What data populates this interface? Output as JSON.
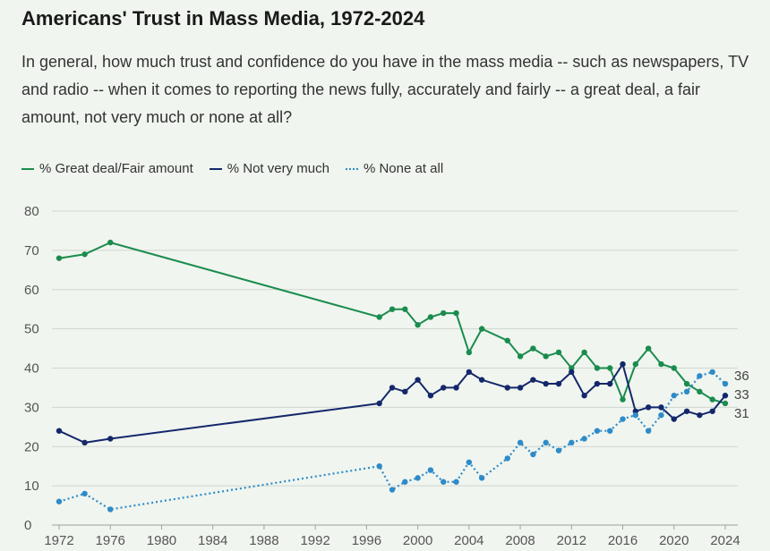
{
  "chart_data": {
    "type": "line",
    "title": "Americans' Trust in Mass Media, 1972-2024",
    "subtitle": "In general, how much trust and confidence do you have in the mass media -- such as newspapers, TV and radio -- when it comes to reporting the news fully, accurately and fairly -- a great deal, a fair amount, not very much or none at all?",
    "xlabel": "",
    "ylabel": "",
    "xlim": [
      1972,
      2024
    ],
    "ylim": [
      0,
      80
    ],
    "x_ticks": [
      1972,
      1976,
      1980,
      1984,
      1988,
      1992,
      1996,
      2000,
      2004,
      2008,
      2012,
      2016,
      2020,
      2024
    ],
    "y_ticks": [
      0,
      10,
      20,
      30,
      40,
      50,
      60,
      70,
      80
    ],
    "grid": true,
    "legend_position": "top-left",
    "series": [
      {
        "name": "% Great deal/Fair amount",
        "color": "#1a8c4e",
        "style": "solid",
        "end_label": "31",
        "points": [
          [
            1972,
            68
          ],
          [
            1974,
            69
          ],
          [
            1976,
            72
          ],
          [
            1997,
            53
          ],
          [
            1998,
            55
          ],
          [
            1999,
            55
          ],
          [
            2000,
            51
          ],
          [
            2001,
            53
          ],
          [
            2002,
            54
          ],
          [
            2003,
            54
          ],
          [
            2004,
            44
          ],
          [
            2005,
            50
          ],
          [
            2007,
            47
          ],
          [
            2008,
            43
          ],
          [
            2009,
            45
          ],
          [
            2010,
            43
          ],
          [
            2011,
            44
          ],
          [
            2012,
            40
          ],
          [
            2013,
            44
          ],
          [
            2014,
            40
          ],
          [
            2015,
            40
          ],
          [
            2016,
            32
          ],
          [
            2017,
            41
          ],
          [
            2018,
            45
          ],
          [
            2019,
            41
          ],
          [
            2020,
            40
          ],
          [
            2021,
            36
          ],
          [
            2022,
            34
          ],
          [
            2023,
            32
          ],
          [
            2024,
            31
          ]
        ]
      },
      {
        "name": "% Not very much",
        "color": "#14276b",
        "style": "solid",
        "end_label": "33",
        "points": [
          [
            1972,
            24
          ],
          [
            1974,
            21
          ],
          [
            1976,
            22
          ],
          [
            1997,
            31
          ],
          [
            1998,
            35
          ],
          [
            1999,
            34
          ],
          [
            2000,
            37
          ],
          [
            2001,
            33
          ],
          [
            2002,
            35
          ],
          [
            2003,
            35
          ],
          [
            2004,
            39
          ],
          [
            2005,
            37
          ],
          [
            2007,
            35
          ],
          [
            2008,
            35
          ],
          [
            2009,
            37
          ],
          [
            2010,
            36
          ],
          [
            2011,
            36
          ],
          [
            2012,
            39
          ],
          [
            2013,
            33
          ],
          [
            2014,
            36
          ],
          [
            2015,
            36
          ],
          [
            2016,
            41
          ],
          [
            2017,
            29
          ],
          [
            2018,
            30
          ],
          [
            2019,
            30
          ],
          [
            2020,
            27
          ],
          [
            2021,
            29
          ],
          [
            2022,
            28
          ],
          [
            2023,
            29
          ],
          [
            2024,
            33
          ]
        ]
      },
      {
        "name": "% None at all",
        "color": "#2e8bc9",
        "style": "dotted",
        "end_label": "36",
        "points": [
          [
            1972,
            6
          ],
          [
            1974,
            8
          ],
          [
            1976,
            4
          ],
          [
            1997,
            15
          ],
          [
            1998,
            9
          ],
          [
            1999,
            11
          ],
          [
            2000,
            12
          ],
          [
            2001,
            14
          ],
          [
            2002,
            11
          ],
          [
            2003,
            11
          ],
          [
            2004,
            16
          ],
          [
            2005,
            12
          ],
          [
            2007,
            17
          ],
          [
            2008,
            21
          ],
          [
            2009,
            18
          ],
          [
            2010,
            21
          ],
          [
            2011,
            19
          ],
          [
            2012,
            21
          ],
          [
            2013,
            22
          ],
          [
            2014,
            24
          ],
          [
            2015,
            24
          ],
          [
            2016,
            27
          ],
          [
            2017,
            28
          ],
          [
            2018,
            24
          ],
          [
            2019,
            28
          ],
          [
            2020,
            33
          ],
          [
            2021,
            34
          ],
          [
            2022,
            38
          ],
          [
            2023,
            39
          ],
          [
            2024,
            36
          ]
        ]
      }
    ]
  }
}
